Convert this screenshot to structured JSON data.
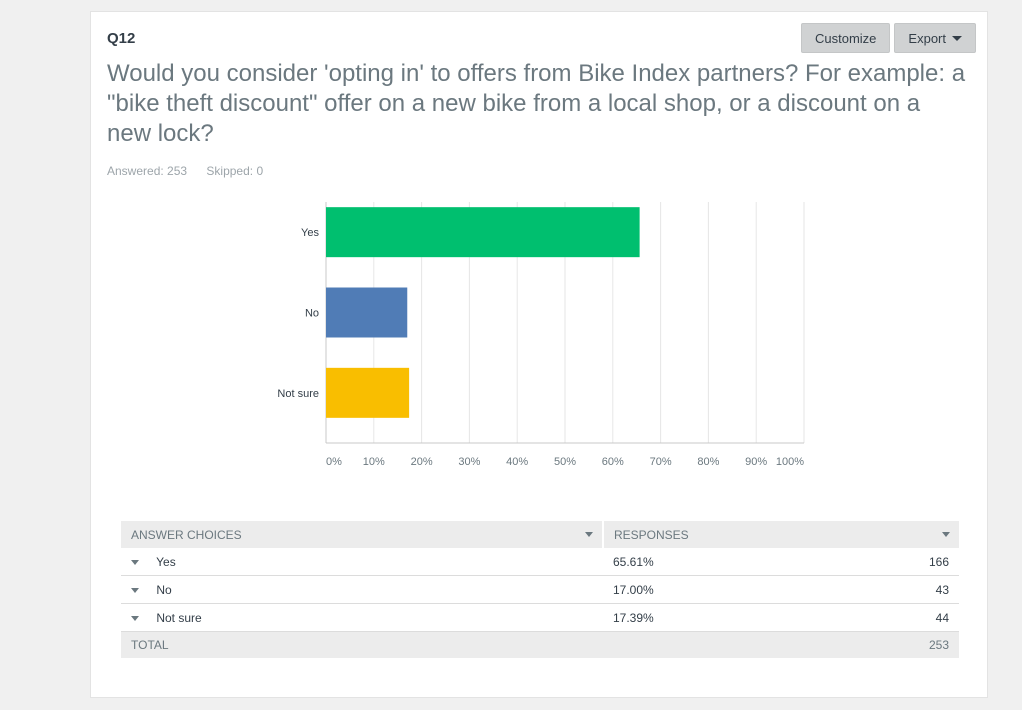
{
  "question": {
    "number": "Q12",
    "title": "Would you consider 'opting in' to offers from Bike Index partners? For example: a \"bike theft discount\" offer on a new bike from a local shop, or a discount on a new lock?",
    "answered": "Answered: 253",
    "skipped": "Skipped: 0"
  },
  "toolbar": {
    "customize_label": "Customize",
    "export_label": "Export"
  },
  "chart_data": {
    "type": "bar",
    "orientation": "horizontal",
    "categories": [
      "Yes",
      "No",
      "Not sure"
    ],
    "values": [
      65.61,
      17.0,
      17.39
    ],
    "colors": [
      "#00bf6f",
      "#507cb6",
      "#f9be00"
    ],
    "xticks": [
      "0%",
      "10%",
      "20%",
      "30%",
      "40%",
      "50%",
      "60%",
      "70%",
      "80%",
      "90%",
      "100%"
    ],
    "xlim": [
      0,
      100
    ],
    "grid": true
  },
  "table": {
    "headers": {
      "choices": "Answer Choices",
      "responses": "Responses"
    },
    "rows": [
      {
        "label": "Yes",
        "percent": "65.61%",
        "count": "166"
      },
      {
        "label": "No",
        "percent": "17.00%",
        "count": "43"
      },
      {
        "label": "Not sure",
        "percent": "17.39%",
        "count": "44"
      }
    ],
    "total_label": "TOTAL",
    "total_count": "253"
  }
}
